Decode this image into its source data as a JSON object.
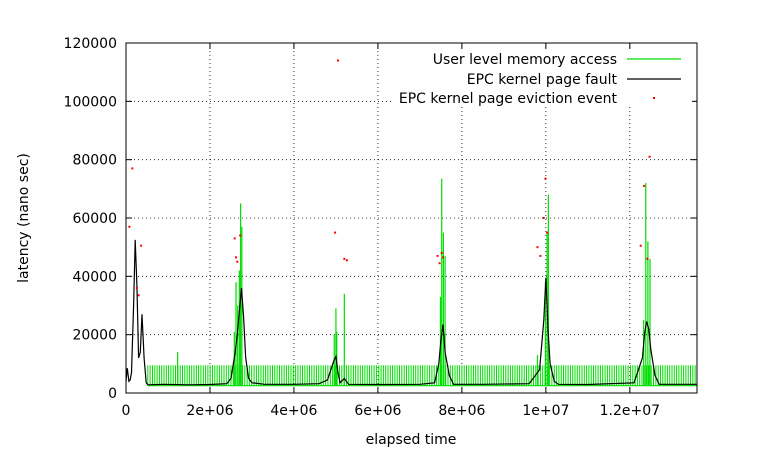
{
  "chart_data": {
    "type": "line",
    "xlabel": "elapsed time",
    "ylabel": "latency (nano sec)",
    "xlim": [
      0,
      13600000
    ],
    "ylim": [
      0,
      120000
    ],
    "x_ticks": [
      {
        "value": 0,
        "label": "0"
      },
      {
        "value": 2000000,
        "label": "2e+06"
      },
      {
        "value": 4000000,
        "label": "4e+06"
      },
      {
        "value": 6000000,
        "label": "6e+06"
      },
      {
        "value": 8000000,
        "label": "8e+06"
      },
      {
        "value": 10000000,
        "label": "1e+07"
      },
      {
        "value": 12000000,
        "label": "1.2e+07"
      }
    ],
    "y_ticks": [
      {
        "value": 0,
        "label": "0"
      },
      {
        "value": 20000,
        "label": "20000"
      },
      {
        "value": 40000,
        "label": "40000"
      },
      {
        "value": 60000,
        "label": "60000"
      },
      {
        "value": 80000,
        "label": "80000"
      },
      {
        "value": 100000,
        "label": "100000"
      },
      {
        "value": 120000,
        "label": "120000"
      }
    ],
    "grid": true,
    "legend_position": "top-right",
    "colors": {
      "user_access": "#00dd00",
      "page_fault": "#000000",
      "eviction": "#ff0000"
    },
    "series": [
      {
        "name": "User level memory access",
        "style": "impulse-line",
        "color": "#00dd00",
        "baseline": 2500,
        "regular_spike": {
          "start": 520000,
          "end": 13600000,
          "period": 55000,
          "height": 9500
        },
        "start_x": 520000,
        "x": [
          1230000,
          2580000,
          2620000,
          2660000,
          2700000,
          2730000,
          2760000,
          4960000,
          5000000,
          5020000,
          5200000,
          7490000,
          7520000,
          7560000,
          7600000,
          9800000,
          9990000,
          10030000,
          10060000,
          12330000,
          12380000,
          12430000,
          12480000
        ],
        "y": [
          14000,
          21000,
          38000,
          30000,
          42000,
          65000,
          57000,
          20000,
          29000,
          21000,
          34000,
          33000,
          73500,
          55000,
          47000,
          13000,
          38000,
          55000,
          68000,
          25000,
          72000,
          52000,
          46000
        ]
      },
      {
        "name": "EPC kernel page fault",
        "style": "line",
        "color": "#000000",
        "x": [
          0,
          30000,
          70000,
          100000,
          130000,
          180000,
          220000,
          260000,
          300000,
          340000,
          380000,
          430000,
          480000,
          520000,
          900000,
          1500000,
          2000000,
          2400000,
          2500000,
          2600000,
          2650000,
          2700000,
          2750000,
          2800000,
          2850000,
          2920000,
          3000000,
          3300000,
          4000000,
          4600000,
          4800000,
          4950000,
          5000000,
          5050000,
          5100000,
          5200000,
          5300000,
          6000000,
          7000000,
          7350000,
          7450000,
          7500000,
          7550000,
          7600000,
          7700000,
          7800000,
          8500000,
          9600000,
          9850000,
          9950000,
          10000000,
          10050000,
          10100000,
          10200000,
          10300000,
          11000000,
          12100000,
          12300000,
          12350000,
          12400000,
          12450000,
          12500000,
          12600000,
          12700000,
          13600000
        ],
        "y": [
          4000,
          8500,
          4000,
          4500,
          7000,
          30000,
          52500,
          37000,
          12000,
          14000,
          27000,
          12000,
          3500,
          2800,
          3000,
          2800,
          2900,
          3200,
          5000,
          14000,
          20000,
          28000,
          36000,
          26000,
          12000,
          5000,
          3500,
          3000,
          3000,
          3200,
          4500,
          11000,
          12500,
          7000,
          3500,
          5000,
          3000,
          2900,
          3000,
          3500,
          10000,
          18000,
          23500,
          14000,
          6000,
          3000,
          3000,
          3200,
          8000,
          25000,
          39500,
          22000,
          10000,
          4000,
          3000,
          2900,
          3500,
          12000,
          20000,
          24500,
          22000,
          15000,
          6000,
          3000,
          3000
        ]
      },
      {
        "name": "EPC kernel page eviction event",
        "style": "points",
        "color": "#ff0000",
        "x": [
          80000,
          150000,
          260000,
          300000,
          360000,
          2590000,
          2620000,
          2650000,
          2720000,
          4980000,
          5050000,
          5200000,
          5260000,
          7420000,
          7470000,
          7520000,
          7550000,
          9800000,
          9870000,
          9950000,
          9990000,
          10030000,
          12260000,
          12340000,
          12420000,
          12470000,
          12550000
        ],
        "y": [
          57000,
          77000,
          36000,
          33500,
          50500,
          53000,
          46500,
          45000,
          54000,
          55000,
          114000,
          46000,
          45500,
          47000,
          44500,
          48000,
          46500,
          50000,
          47000,
          60000,
          73500,
          55000,
          50500,
          71000,
          46000,
          81000,
          101500
        ]
      }
    ]
  }
}
